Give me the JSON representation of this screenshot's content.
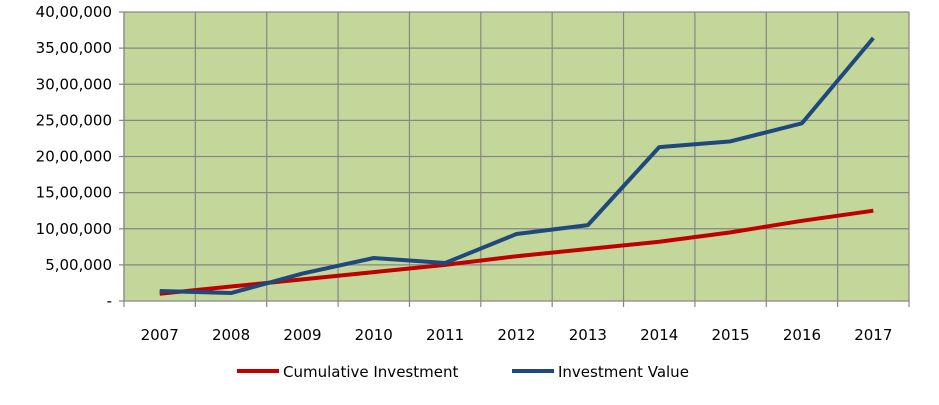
{
  "chart_data": {
    "type": "line",
    "categories": [
      "2007",
      "2008",
      "2009",
      "2010",
      "2011",
      "2012",
      "2013",
      "2014",
      "2015",
      "2016",
      "2017"
    ],
    "series": [
      {
        "name": "Cumulative Investment",
        "color": "#C00000",
        "values": [
          100000,
          200000,
          300000,
          400000,
          500000,
          620000,
          720000,
          820000,
          950000,
          1110000,
          1250000
        ]
      },
      {
        "name": "Investment Value",
        "color": "#1F497D",
        "values": [
          138000,
          110000,
          380000,
          595000,
          526000,
          927000,
          1050000,
          2130000,
          2210000,
          2460000,
          3640000
        ]
      }
    ],
    "yticks": [
      "-",
      "5,00,000",
      "10,00,000",
      "15,00,000",
      "20,00,000",
      "25,00,000",
      "30,00,000",
      "35,00,000",
      "40,00,000"
    ],
    "ylim": [
      0,
      4000000
    ],
    "grid": true,
    "plot_background": "#C4D79B",
    "legend_position": "bottom"
  }
}
